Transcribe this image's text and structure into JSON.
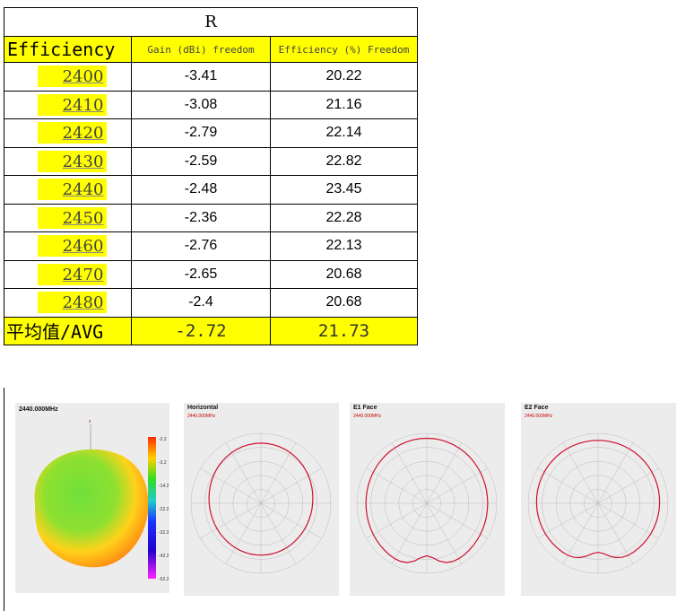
{
  "table": {
    "title": "R",
    "headers": [
      "Efficiency",
      "Gain (dBi) freedom",
      "Efficiency (%) Freedom"
    ],
    "rows": [
      {
        "freq": "2400",
        "gain": "-3.41",
        "eff": "20.22"
      },
      {
        "freq": "2410",
        "gain": "-3.08",
        "eff": "21.16"
      },
      {
        "freq": "2420",
        "gain": "-2.79",
        "eff": "22.14"
      },
      {
        "freq": "2430",
        "gain": "-2.59",
        "eff": "22.82"
      },
      {
        "freq": "2440",
        "gain": "-2.48",
        "eff": "23.45"
      },
      {
        "freq": "2450",
        "gain": "-2.36",
        "eff": "22.28"
      },
      {
        "freq": "2460",
        "gain": "-2.76",
        "eff": "22.13"
      },
      {
        "freq": "2470",
        "gain": "-2.65",
        "eff": "20.68"
      },
      {
        "freq": "2480",
        "gain": "-2.4",
        "eff": "20.68"
      }
    ],
    "avg": {
      "label": "平均值/AVG",
      "gain": "-2.72",
      "eff": "21.73"
    }
  },
  "figures": {
    "panel3d": {
      "title": "2440.000MHz",
      "scale": [
        "-2.2",
        "-3.2",
        "-14.2",
        "-22.2",
        "-32.2",
        "-42.2",
        "-52.2"
      ]
    },
    "horizontal": {
      "title": "Horizontal",
      "subtitle": "2440.000MHz"
    },
    "e1": {
      "title": "E1 Face",
      "subtitle": "2440.000MHz"
    },
    "e2": {
      "title": "E2 Face",
      "subtitle": "2440.000MHz"
    }
  }
}
